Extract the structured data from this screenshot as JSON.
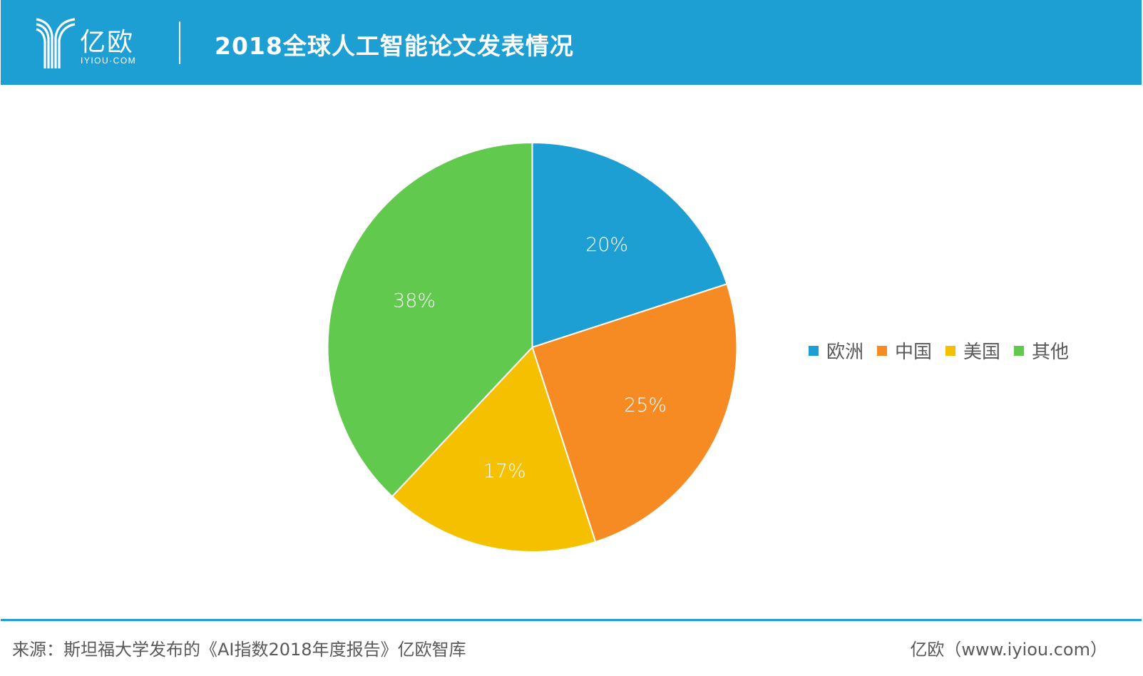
{
  "header": {
    "logo_text": "亿欧",
    "logo_sub": "IYIOU·COM",
    "title": "2018全球人工智能论文发表情况"
  },
  "chart_data": {
    "type": "pie",
    "title": "2018全球人工智能论文发表情况",
    "categories": [
      "欧洲",
      "中国",
      "美国",
      "其他"
    ],
    "values": [
      20,
      25,
      17,
      38
    ],
    "labels": [
      "20%",
      "25%",
      "17%",
      "38%"
    ],
    "colors": [
      "#1e9fd4",
      "#f68b24",
      "#f5c000",
      "#61c94d"
    ],
    "start_angle_deg": 0,
    "direction": "clockwise",
    "legend_position": "right",
    "center": [
      746.5,
      487
    ],
    "radius": 287
  },
  "legend": {
    "items": [
      {
        "label": "欧洲",
        "color": "#1e9fd4"
      },
      {
        "label": "中国",
        "color": "#f68b24"
      },
      {
        "label": "美国",
        "color": "#f5c000"
      },
      {
        "label": "其他",
        "color": "#61c94d"
      }
    ]
  },
  "footer": {
    "source": "来源：斯坦福大学发布的《AI指数2018年度报告》亿欧智库",
    "site": "亿欧（www.iyiou.com）"
  },
  "colors": {
    "brand_blue": "#1e9fd4",
    "text_gray": "#595959"
  }
}
